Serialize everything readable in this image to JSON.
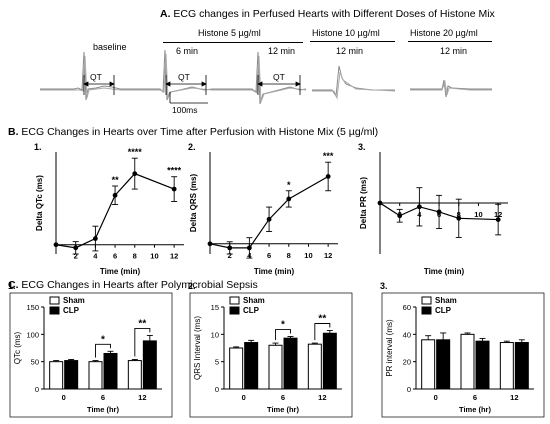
{
  "sections": {
    "a": {
      "letter": "A.",
      "title": "ECG changes in Perfused Hearts with Different Doses of Histone Mix"
    },
    "b": {
      "letter": "B.",
      "title": "ECG Changes in Hearts over Time after Perfusion with Histone Mix (5 µg/ml)"
    },
    "c": {
      "letter": "C.",
      "title": "ECG Changes in Hearts after Polymicrobial Sepsis"
    }
  },
  "ecg": {
    "baseline": "baseline",
    "histone5": "Histone 5 µg/ml",
    "t6": "6 min",
    "t12": "12 min",
    "histone10": "Histone 10 µg/ml",
    "t12b": "12 min",
    "histone20": "Histone 20 µg/ml",
    "t12c": "12 min",
    "qt1": "QT",
    "qt2": "QT",
    "qt3": "QT",
    "scale": "100ms"
  },
  "colors": {
    "bar_dark": "#000000",
    "bar_light": "#ffffff",
    "trace": "#8a8a8a"
  },
  "chart_data": [
    {
      "type": "line",
      "panel": "1.",
      "ylabel": "Delta QTc (ms)",
      "xlabel": "Time (min)",
      "x": [
        0,
        2,
        4,
        6,
        8,
        12
      ],
      "y": [
        0,
        -1,
        2,
        16,
        23,
        18
      ],
      "err": [
        0,
        2,
        4,
        3,
        5,
        4
      ],
      "sig": [
        "",
        "",
        "",
        "**",
        "****",
        "****"
      ],
      "xticks": [
        2,
        4,
        6,
        8,
        10,
        12
      ],
      "xlim": [
        0,
        13
      ],
      "ylim": [
        -3,
        30
      ]
    },
    {
      "type": "line",
      "panel": "2.",
      "ylabel": "Delta QRS (ms)",
      "xlabel": "Time (min)",
      "x": [
        0,
        2,
        4,
        6,
        8,
        12
      ],
      "y": [
        0,
        -0.2,
        -0.2,
        1.2,
        2.2,
        3.3
      ],
      "err": [
        0,
        0.3,
        0.5,
        0.6,
        0.4,
        0.7
      ],
      "sig": [
        "",
        "",
        "",
        "",
        "*",
        "***"
      ],
      "xticks": [
        2,
        4,
        6,
        8,
        10,
        12
      ],
      "xlim": [
        0,
        13
      ],
      "ylim": [
        -0.5,
        4.5
      ]
    },
    {
      "type": "line",
      "panel": "3.",
      "ylabel": "Delta PR (ms)",
      "xlabel": "Time (min)",
      "x": [
        0,
        2,
        4,
        6,
        8,
        12
      ],
      "y": [
        0,
        -1,
        -0.3,
        -0.7,
        -1.2,
        -1.3
      ],
      "err": [
        0,
        0.5,
        1.5,
        1.3,
        1.5,
        1.2
      ],
      "sig": [
        "",
        "",
        "",
        "",
        "",
        ""
      ],
      "xticks": [
        2,
        4,
        6,
        8,
        10,
        12
      ],
      "xlim": [
        0,
        13
      ],
      "ylim": [
        -4,
        4
      ]
    },
    {
      "type": "bar",
      "panel": "1.",
      "ylabel": "QTc (ms)",
      "xlabel": "Time (hr)",
      "categories": [
        "0",
        "6",
        "12"
      ],
      "series": [
        {
          "name": "Sham",
          "values": [
            50,
            50,
            52
          ],
          "err": [
            2,
            2,
            2
          ]
        },
        {
          "name": "CLP",
          "values": [
            52,
            65,
            88
          ],
          "err": [
            2,
            4,
            10
          ]
        }
      ],
      "sig": [
        "",
        "*",
        "**"
      ],
      "yticks": [
        0,
        50,
        100,
        150
      ],
      "ylim": [
        0,
        150
      ]
    },
    {
      "type": "bar",
      "panel": "2.",
      "ylabel": "QRS Interval (ms)",
      "xlabel": "Time (hr)",
      "categories": [
        "0",
        "6",
        "12"
      ],
      "series": [
        {
          "name": "Sham",
          "values": [
            7.5,
            8,
            8.2
          ],
          "err": [
            0.2,
            0.4,
            0.2
          ]
        },
        {
          "name": "CLP",
          "values": [
            8.5,
            9.3,
            10.2
          ],
          "err": [
            0.4,
            0.3,
            0.5
          ]
        }
      ],
      "sig": [
        "",
        "*",
        "**"
      ],
      "yticks": [
        0,
        5,
        10,
        15
      ],
      "ylim": [
        0,
        15
      ]
    },
    {
      "type": "bar",
      "panel": "3.",
      "ylabel": "PR interval (ms)",
      "xlabel": "Time (hr)",
      "categories": [
        "0",
        "6",
        "12"
      ],
      "series": [
        {
          "name": "Sham",
          "values": [
            36,
            40,
            34
          ],
          "err": [
            3,
            1,
            1
          ]
        },
        {
          "name": "CLP",
          "values": [
            36,
            35,
            34
          ],
          "err": [
            5,
            2,
            2
          ]
        }
      ],
      "sig": [
        "",
        "",
        ""
      ],
      "yticks": [
        0,
        20,
        40,
        60
      ],
      "ylim": [
        0,
        60
      ]
    }
  ]
}
